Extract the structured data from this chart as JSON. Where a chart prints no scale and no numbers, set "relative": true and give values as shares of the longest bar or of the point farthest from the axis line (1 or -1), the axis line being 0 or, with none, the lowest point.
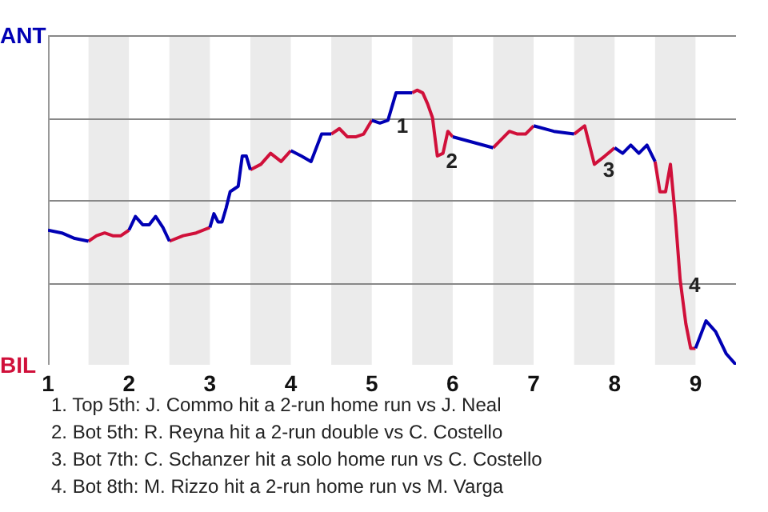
{
  "chart_data": {
    "type": "line",
    "relative": true,
    "xlim": [
      1,
      9.5
    ],
    "xticks": [
      1,
      2,
      3,
      4,
      5,
      6,
      7,
      8,
      9
    ],
    "grid": "y",
    "series": [
      {
        "color": "#0000b4",
        "x": [
          1,
          1.17,
          1.33,
          1.5,
          null,
          2,
          2.08,
          2.17,
          2.25,
          2.33,
          2.42,
          2.5,
          null,
          3,
          3.05,
          3.1,
          3.15,
          3.2,
          3.25,
          3.3,
          3.35,
          3.4,
          3.45,
          3.5,
          null,
          4,
          4.13,
          4.25,
          4.38,
          4.5,
          null,
          5,
          5.1,
          5.2,
          5.3,
          5.4,
          5.5,
          null,
          6,
          6.5,
          null,
          7,
          7.25,
          7.5,
          null,
          8,
          8.1,
          8.2,
          8.3,
          8.4,
          8.5,
          null,
          9,
          9.13,
          9.25,
          9.38,
          9.5
        ],
        "values": [
          0.49,
          0.48,
          0.46,
          0.45,
          null,
          0.49,
          0.54,
          0.51,
          0.51,
          0.54,
          0.5,
          0.45,
          null,
          0.5,
          0.55,
          0.52,
          0.52,
          0.57,
          0.63,
          0.64,
          0.65,
          0.76,
          0.76,
          0.71,
          null,
          0.78,
          0.76,
          0.74,
          0.84,
          0.84,
          null,
          0.89,
          0.88,
          0.89,
          0.99,
          0.99,
          0.99,
          null,
          0.83,
          0.79,
          null,
          0.87,
          0.85,
          0.84,
          null,
          0.79,
          0.77,
          0.8,
          0.77,
          0.8,
          0.74,
          null,
          0.06,
          0.16,
          0.12,
          0.04,
          0
        ]
      },
      {
        "color": "#d0103a",
        "x": [
          1.5,
          1.6,
          1.7,
          1.8,
          1.9,
          2,
          null,
          2.5,
          2.67,
          2.83,
          3,
          null,
          3.5,
          3.63,
          3.75,
          3.88,
          4,
          null,
          4.5,
          4.6,
          4.7,
          4.8,
          4.9,
          5,
          null,
          5.5,
          5.56,
          5.63,
          5.69,
          5.75,
          5.81,
          5.88,
          5.94,
          6,
          null,
          6.5,
          6.6,
          6.7,
          6.8,
          6.9,
          7,
          null,
          7.5,
          7.63,
          7.75,
          7.88,
          8,
          null,
          8.5,
          8.56,
          8.63,
          8.69,
          8.75,
          8.81,
          8.88,
          8.94,
          9
        ],
        "values": [
          0.45,
          0.47,
          0.48,
          0.47,
          0.47,
          0.49,
          null,
          0.45,
          0.47,
          0.48,
          0.5,
          null,
          0.71,
          0.73,
          0.77,
          0.74,
          0.78,
          null,
          0.84,
          0.86,
          0.83,
          0.83,
          0.84,
          0.89,
          null,
          0.99,
          1,
          0.99,
          0.95,
          0.9,
          0.76,
          0.77,
          0.85,
          0.83,
          null,
          0.79,
          0.82,
          0.85,
          0.84,
          0.84,
          0.87,
          null,
          0.84,
          0.87,
          0.73,
          0.76,
          0.79,
          null,
          0.74,
          0.63,
          0.63,
          0.73,
          0.54,
          0.31,
          0.15,
          0.06,
          0.06
        ]
      }
    ],
    "bands": [
      {
        "axis": "x",
        "from": 1.5,
        "to": 2,
        "color": "#ebebeb"
      },
      {
        "axis": "x",
        "from": 2.5,
        "to": 3,
        "color": "#ebebeb"
      },
      {
        "axis": "x",
        "from": 3.5,
        "to": 4,
        "color": "#ebebeb"
      },
      {
        "axis": "x",
        "from": 4.5,
        "to": 5,
        "color": "#ebebeb"
      },
      {
        "axis": "x",
        "from": 5.5,
        "to": 6,
        "color": "#ebebeb"
      },
      {
        "axis": "x",
        "from": 6.5,
        "to": 7,
        "color": "#ebebeb"
      },
      {
        "axis": "x",
        "from": 7.5,
        "to": 8,
        "color": "#ebebeb"
      },
      {
        "axis": "x",
        "from": 8.5,
        "to": 9,
        "color": "#ebebeb"
      }
    ],
    "annotations": [
      "ANT",
      "BIL",
      {
        "text": "1",
        "x": 5.2,
        "y": 0.89
      },
      {
        "text": "2",
        "x": 5.81,
        "y": 0.76
      },
      {
        "text": "3",
        "x": 7.75,
        "y": 0.73
      },
      {
        "text": "4",
        "x": 8.81,
        "y": 0.31
      },
      "1. Top 5th: J. Commo hit a 2-run home run vs J. Neal",
      "2. Bot 5th: R. Reyna hit a 2-run double vs C. Costello",
      "3. Bot 7th: C. Schanzer hit a solo home run vs C. Costello",
      "4. Bot 8th: M. Rizzo hit a 2-run home run vs M. Varga"
    ]
  }
}
